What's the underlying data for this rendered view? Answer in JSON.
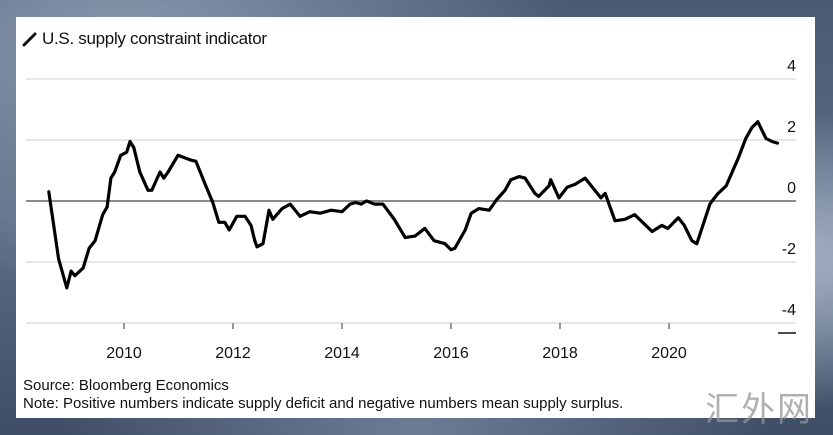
{
  "chart_data": {
    "type": "line",
    "title": "U.S. supply constraint indicator",
    "legend": [
      {
        "label": "U.S. supply constraint indicator",
        "color": "#000000"
      }
    ],
    "xlabel": "",
    "ylabel": "",
    "xlim": [
      2008.3,
      2022.5
    ],
    "ylim": [
      -4,
      4
    ],
    "x_ticks": [
      2010,
      2012,
      2014,
      2016,
      2018,
      2020
    ],
    "x_tick_labels": [
      "2010",
      "2012",
      "2014",
      "2016",
      "2018",
      "2020"
    ],
    "y_ticks": [
      4,
      2,
      0,
      -2,
      -4
    ],
    "y_tick_labels": [
      "4",
      "2",
      "0",
      "-2",
      "-4"
    ],
    "grid": true,
    "y_axis_side": "right",
    "series": [
      {
        "name": "U.S. supply constraint indicator",
        "color": "#000000",
        "points": [
          [
            2008.62,
            0.3
          ],
          [
            2008.8,
            -1.9
          ],
          [
            2008.95,
            -2.85
          ],
          [
            2009.03,
            -2.3
          ],
          [
            2009.1,
            -2.45
          ],
          [
            2009.25,
            -2.2
          ],
          [
            2009.36,
            -1.55
          ],
          [
            2009.47,
            -1.3
          ],
          [
            2009.61,
            -0.45
          ],
          [
            2009.69,
            -0.2
          ],
          [
            2009.76,
            0.75
          ],
          [
            2009.83,
            0.95
          ],
          [
            2009.94,
            1.5
          ],
          [
            2010.05,
            1.6
          ],
          [
            2010.11,
            1.95
          ],
          [
            2010.18,
            1.75
          ],
          [
            2010.29,
            0.95
          ],
          [
            2010.44,
            0.35
          ],
          [
            2010.51,
            0.35
          ],
          [
            2010.66,
            0.95
          ],
          [
            2010.73,
            0.75
          ],
          [
            2010.81,
            0.95
          ],
          [
            2010.99,
            1.5
          ],
          [
            2011.21,
            1.35
          ],
          [
            2011.32,
            1.3
          ],
          [
            2011.5,
            0.5
          ],
          [
            2011.63,
            -0.05
          ],
          [
            2011.74,
            -0.7
          ],
          [
            2011.85,
            -0.7
          ],
          [
            2011.93,
            -0.95
          ],
          [
            2012.07,
            -0.5
          ],
          [
            2012.22,
            -0.5
          ],
          [
            2012.33,
            -0.8
          ],
          [
            2012.4,
            -1.3
          ],
          [
            2012.44,
            -1.5
          ],
          [
            2012.55,
            -1.4
          ],
          [
            2012.66,
            -0.3
          ],
          [
            2012.73,
            -0.6
          ],
          [
            2012.9,
            -0.25
          ],
          [
            2013.05,
            -0.1
          ],
          [
            2013.23,
            -0.5
          ],
          [
            2013.41,
            -0.35
          ],
          [
            2013.6,
            -0.4
          ],
          [
            2013.8,
            -0.3
          ],
          [
            2014.0,
            -0.35
          ],
          [
            2014.15,
            -0.1
          ],
          [
            2014.25,
            -0.05
          ],
          [
            2014.35,
            -0.1
          ],
          [
            2014.45,
            0.0
          ],
          [
            2014.6,
            -0.1
          ],
          [
            2014.75,
            -0.1
          ],
          [
            2014.96,
            -0.6
          ],
          [
            2015.16,
            -1.2
          ],
          [
            2015.34,
            -1.15
          ],
          [
            2015.52,
            -0.9
          ],
          [
            2015.69,
            -1.3
          ],
          [
            2015.89,
            -1.4
          ],
          [
            2016.0,
            -1.6
          ],
          [
            2016.07,
            -1.55
          ],
          [
            2016.26,
            -0.95
          ],
          [
            2016.37,
            -0.4
          ],
          [
            2016.51,
            -0.25
          ],
          [
            2016.7,
            -0.3
          ],
          [
            2016.84,
            0.05
          ],
          [
            2016.99,
            0.35
          ],
          [
            2017.1,
            0.7
          ],
          [
            2017.25,
            0.8
          ],
          [
            2017.36,
            0.75
          ],
          [
            2017.54,
            0.25
          ],
          [
            2017.61,
            0.15
          ],
          [
            2017.8,
            0.5
          ],
          [
            2017.83,
            0.7
          ],
          [
            2017.98,
            0.1
          ],
          [
            2018.13,
            0.45
          ],
          [
            2018.28,
            0.55
          ],
          [
            2018.46,
            0.75
          ],
          [
            2018.75,
            0.1
          ],
          [
            2018.83,
            0.25
          ],
          [
            2019.01,
            -0.65
          ],
          [
            2019.19,
            -0.6
          ],
          [
            2019.37,
            -0.45
          ],
          [
            2019.69,
            -1.0
          ],
          [
            2019.87,
            -0.8
          ],
          [
            2019.98,
            -0.9
          ],
          [
            2020.17,
            -0.55
          ],
          [
            2020.28,
            -0.8
          ],
          [
            2020.42,
            -1.3
          ],
          [
            2020.51,
            -1.4
          ],
          [
            2020.75,
            -0.1
          ],
          [
            2020.79,
            0.0
          ],
          [
            2020.9,
            0.25
          ],
          [
            2021.05,
            0.5
          ],
          [
            2021.16,
            0.95
          ],
          [
            2021.27,
            1.4
          ],
          [
            2021.41,
            2.05
          ],
          [
            2021.52,
            2.4
          ],
          [
            2021.63,
            2.6
          ],
          [
            2021.78,
            2.05
          ],
          [
            2021.89,
            1.95
          ],
          [
            2021.99,
            1.9
          ]
        ]
      }
    ]
  },
  "footer": {
    "source": "Source: Bloomberg Economics",
    "note": "Note: Positive numbers indicate supply deficit and negative numbers mean supply surplus."
  },
  "watermark": "汇外网",
  "legend_icon": "line-legend-icon"
}
